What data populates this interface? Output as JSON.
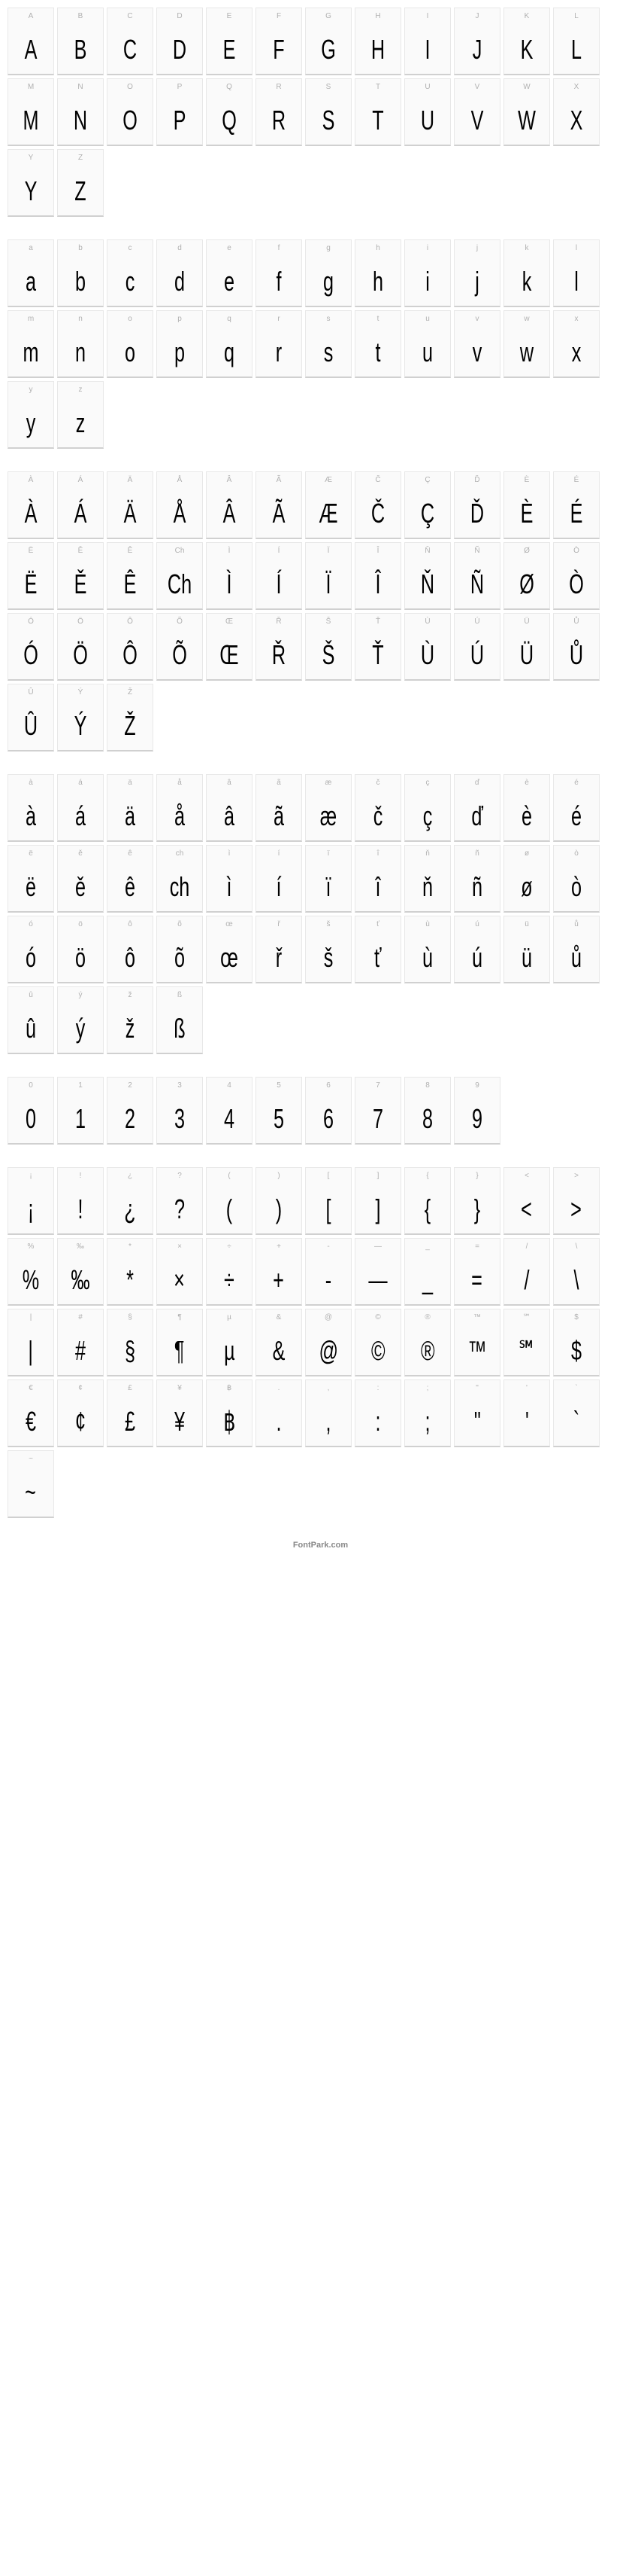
{
  "footer_text": "FontPark.com",
  "cell_style": {
    "width": 62,
    "height": 90,
    "background_color": "#fafafa",
    "border_color": "#e8e8e8",
    "border_bottom_color": "#d0d0d0",
    "label_color": "#b0b0b0",
    "label_fontsize": 10,
    "glyph_color": "#000000",
    "glyph_fontsize": 36,
    "font_stretch": "condensed"
  },
  "sections": [
    {
      "name": "uppercase",
      "glyphs": [
        {
          "label": "A",
          "char": "A"
        },
        {
          "label": "B",
          "char": "B"
        },
        {
          "label": "C",
          "char": "C"
        },
        {
          "label": "D",
          "char": "D"
        },
        {
          "label": "E",
          "char": "E"
        },
        {
          "label": "F",
          "char": "F"
        },
        {
          "label": "G",
          "char": "G"
        },
        {
          "label": "H",
          "char": "H"
        },
        {
          "label": "I",
          "char": "I"
        },
        {
          "label": "J",
          "char": "J"
        },
        {
          "label": "K",
          "char": "K"
        },
        {
          "label": "L",
          "char": "L"
        },
        {
          "label": "M",
          "char": "M"
        },
        {
          "label": "N",
          "char": "N"
        },
        {
          "label": "O",
          "char": "O"
        },
        {
          "label": "P",
          "char": "P"
        },
        {
          "label": "Q",
          "char": "Q"
        },
        {
          "label": "R",
          "char": "R"
        },
        {
          "label": "S",
          "char": "S"
        },
        {
          "label": "T",
          "char": "T"
        },
        {
          "label": "U",
          "char": "U"
        },
        {
          "label": "V",
          "char": "V"
        },
        {
          "label": "W",
          "char": "W"
        },
        {
          "label": "X",
          "char": "X"
        },
        {
          "label": "Y",
          "char": "Y"
        },
        {
          "label": "Z",
          "char": "Z"
        }
      ]
    },
    {
      "name": "lowercase",
      "glyphs": [
        {
          "label": "a",
          "char": "a"
        },
        {
          "label": "b",
          "char": "b"
        },
        {
          "label": "c",
          "char": "c"
        },
        {
          "label": "d",
          "char": "d"
        },
        {
          "label": "e",
          "char": "e"
        },
        {
          "label": "f",
          "char": "f"
        },
        {
          "label": "g",
          "char": "g"
        },
        {
          "label": "h",
          "char": "h"
        },
        {
          "label": "i",
          "char": "i"
        },
        {
          "label": "j",
          "char": "j"
        },
        {
          "label": "k",
          "char": "k"
        },
        {
          "label": "l",
          "char": "l"
        },
        {
          "label": "m",
          "char": "m"
        },
        {
          "label": "n",
          "char": "n"
        },
        {
          "label": "o",
          "char": "o"
        },
        {
          "label": "p",
          "char": "p"
        },
        {
          "label": "q",
          "char": "q"
        },
        {
          "label": "r",
          "char": "r"
        },
        {
          "label": "s",
          "char": "s"
        },
        {
          "label": "t",
          "char": "t"
        },
        {
          "label": "u",
          "char": "u"
        },
        {
          "label": "v",
          "char": "v"
        },
        {
          "label": "w",
          "char": "w"
        },
        {
          "label": "x",
          "char": "x"
        },
        {
          "label": "y",
          "char": "y"
        },
        {
          "label": "z",
          "char": "z"
        }
      ]
    },
    {
      "name": "uppercase-accented",
      "glyphs": [
        {
          "label": "À",
          "char": "À"
        },
        {
          "label": "Á",
          "char": "Á"
        },
        {
          "label": "Ä",
          "char": "Ä"
        },
        {
          "label": "Å",
          "char": "Å"
        },
        {
          "label": "Â",
          "char": "Â"
        },
        {
          "label": "Ã",
          "char": "Ã"
        },
        {
          "label": "Æ",
          "char": "Æ"
        },
        {
          "label": "Č",
          "char": "Č"
        },
        {
          "label": "Ç",
          "char": "Ç"
        },
        {
          "label": "Ď",
          "char": "Ď"
        },
        {
          "label": "È",
          "char": "È"
        },
        {
          "label": "É",
          "char": "É"
        },
        {
          "label": "Ë",
          "char": "Ë"
        },
        {
          "label": "Ě",
          "char": "Ě"
        },
        {
          "label": "Ê",
          "char": "Ê"
        },
        {
          "label": "Ch",
          "char": "Ch"
        },
        {
          "label": "Ì",
          "char": "Ì"
        },
        {
          "label": "Í",
          "char": "Í"
        },
        {
          "label": "Ï",
          "char": "Ï"
        },
        {
          "label": "Î",
          "char": "Î"
        },
        {
          "label": "Ň",
          "char": "Ň"
        },
        {
          "label": "Ñ",
          "char": "Ñ"
        },
        {
          "label": "Ø",
          "char": "Ø"
        },
        {
          "label": "Ò",
          "char": "Ò"
        },
        {
          "label": "Ó",
          "char": "Ó"
        },
        {
          "label": "Ö",
          "char": "Ö"
        },
        {
          "label": "Ô",
          "char": "Ô"
        },
        {
          "label": "Õ",
          "char": "Õ"
        },
        {
          "label": "Œ",
          "char": "Œ"
        },
        {
          "label": "Ř",
          "char": "Ř"
        },
        {
          "label": "Š",
          "char": "Š"
        },
        {
          "label": "Ť",
          "char": "Ť"
        },
        {
          "label": "Ù",
          "char": "Ù"
        },
        {
          "label": "Ú",
          "char": "Ú"
        },
        {
          "label": "Ü",
          "char": "Ü"
        },
        {
          "label": "Ů",
          "char": "Ů"
        },
        {
          "label": "Û",
          "char": "Û"
        },
        {
          "label": "Ý",
          "char": "Ý"
        },
        {
          "label": "Ž",
          "char": "Ž"
        }
      ]
    },
    {
      "name": "lowercase-accented",
      "glyphs": [
        {
          "label": "à",
          "char": "à"
        },
        {
          "label": "á",
          "char": "á"
        },
        {
          "label": "ä",
          "char": "ä"
        },
        {
          "label": "å",
          "char": "å"
        },
        {
          "label": "â",
          "char": "â"
        },
        {
          "label": "ã",
          "char": "ã"
        },
        {
          "label": "æ",
          "char": "æ"
        },
        {
          "label": "č",
          "char": "č"
        },
        {
          "label": "ç",
          "char": "ç"
        },
        {
          "label": "ď",
          "char": "ď"
        },
        {
          "label": "è",
          "char": "è"
        },
        {
          "label": "é",
          "char": "é"
        },
        {
          "label": "ë",
          "char": "ë"
        },
        {
          "label": "ě",
          "char": "ě"
        },
        {
          "label": "ê",
          "char": "ê"
        },
        {
          "label": "ch",
          "char": "ch"
        },
        {
          "label": "ì",
          "char": "ì"
        },
        {
          "label": "í",
          "char": "í"
        },
        {
          "label": "ï",
          "char": "ï"
        },
        {
          "label": "î",
          "char": "î"
        },
        {
          "label": "ň",
          "char": "ň"
        },
        {
          "label": "ñ",
          "char": "ñ"
        },
        {
          "label": "ø",
          "char": "ø"
        },
        {
          "label": "ò",
          "char": "ò"
        },
        {
          "label": "ó",
          "char": "ó"
        },
        {
          "label": "ö",
          "char": "ö"
        },
        {
          "label": "ô",
          "char": "ô"
        },
        {
          "label": "õ",
          "char": "õ"
        },
        {
          "label": "œ",
          "char": "œ"
        },
        {
          "label": "ř",
          "char": "ř"
        },
        {
          "label": "š",
          "char": "š"
        },
        {
          "label": "ť",
          "char": "ť"
        },
        {
          "label": "ù",
          "char": "ù"
        },
        {
          "label": "ú",
          "char": "ú"
        },
        {
          "label": "ü",
          "char": "ü"
        },
        {
          "label": "ů",
          "char": "ů"
        },
        {
          "label": "û",
          "char": "û"
        },
        {
          "label": "ý",
          "char": "ý"
        },
        {
          "label": "ž",
          "char": "ž"
        },
        {
          "label": "ß",
          "char": "ß"
        }
      ]
    },
    {
      "name": "digits",
      "glyphs": [
        {
          "label": "0",
          "char": "0"
        },
        {
          "label": "1",
          "char": "1"
        },
        {
          "label": "2",
          "char": "2"
        },
        {
          "label": "3",
          "char": "3"
        },
        {
          "label": "4",
          "char": "4"
        },
        {
          "label": "5",
          "char": "5"
        },
        {
          "label": "6",
          "char": "6"
        },
        {
          "label": "7",
          "char": "7"
        },
        {
          "label": "8",
          "char": "8"
        },
        {
          "label": "9",
          "char": "9"
        }
      ]
    },
    {
      "name": "punctuation",
      "glyphs": [
        {
          "label": "¡",
          "char": "¡"
        },
        {
          "label": "!",
          "char": "!"
        },
        {
          "label": "¿",
          "char": "¿"
        },
        {
          "label": "?",
          "char": "?"
        },
        {
          "label": "(",
          "char": "("
        },
        {
          "label": ")",
          "char": ")"
        },
        {
          "label": "[",
          "char": "["
        },
        {
          "label": "]",
          "char": "]"
        },
        {
          "label": "{",
          "char": "{"
        },
        {
          "label": "}",
          "char": "}"
        },
        {
          "label": "<",
          "char": "<"
        },
        {
          "label": ">",
          "char": ">"
        },
        {
          "label": "%",
          "char": "%"
        },
        {
          "label": "‰",
          "char": "‰"
        },
        {
          "label": "*",
          "char": "*"
        },
        {
          "label": "×",
          "char": "×"
        },
        {
          "label": "÷",
          "char": "÷"
        },
        {
          "label": "+",
          "char": "+"
        },
        {
          "label": "-",
          "char": "-"
        },
        {
          "label": "—",
          "char": "—"
        },
        {
          "label": "_",
          "char": "_"
        },
        {
          "label": "=",
          "char": "="
        },
        {
          "label": "/",
          "char": "/"
        },
        {
          "label": "\\",
          "char": "\\"
        },
        {
          "label": "|",
          "char": "|"
        },
        {
          "label": "#",
          "char": "#"
        },
        {
          "label": "§",
          "char": "§"
        },
        {
          "label": "¶",
          "char": "¶"
        },
        {
          "label": "µ",
          "char": "µ"
        },
        {
          "label": "&",
          "char": "&"
        },
        {
          "label": "@",
          "char": "@"
        },
        {
          "label": "©",
          "char": "©"
        },
        {
          "label": "®",
          "char": "®"
        },
        {
          "label": "™",
          "char": "™"
        },
        {
          "label": "℠",
          "char": "℠"
        },
        {
          "label": "$",
          "char": "$"
        },
        {
          "label": "€",
          "char": "€"
        },
        {
          "label": "¢",
          "char": "¢"
        },
        {
          "label": "£",
          "char": "£"
        },
        {
          "label": "¥",
          "char": "¥"
        },
        {
          "label": "฿",
          "char": "฿"
        },
        {
          "label": ".",
          "char": "."
        },
        {
          "label": ",",
          "char": ","
        },
        {
          "label": ":",
          "char": ":"
        },
        {
          "label": ";",
          "char": ";"
        },
        {
          "label": "\"",
          "char": "\""
        },
        {
          "label": "'",
          "char": "'"
        },
        {
          "label": "`",
          "char": "`"
        },
        {
          "label": "~",
          "char": "~"
        }
      ]
    }
  ]
}
